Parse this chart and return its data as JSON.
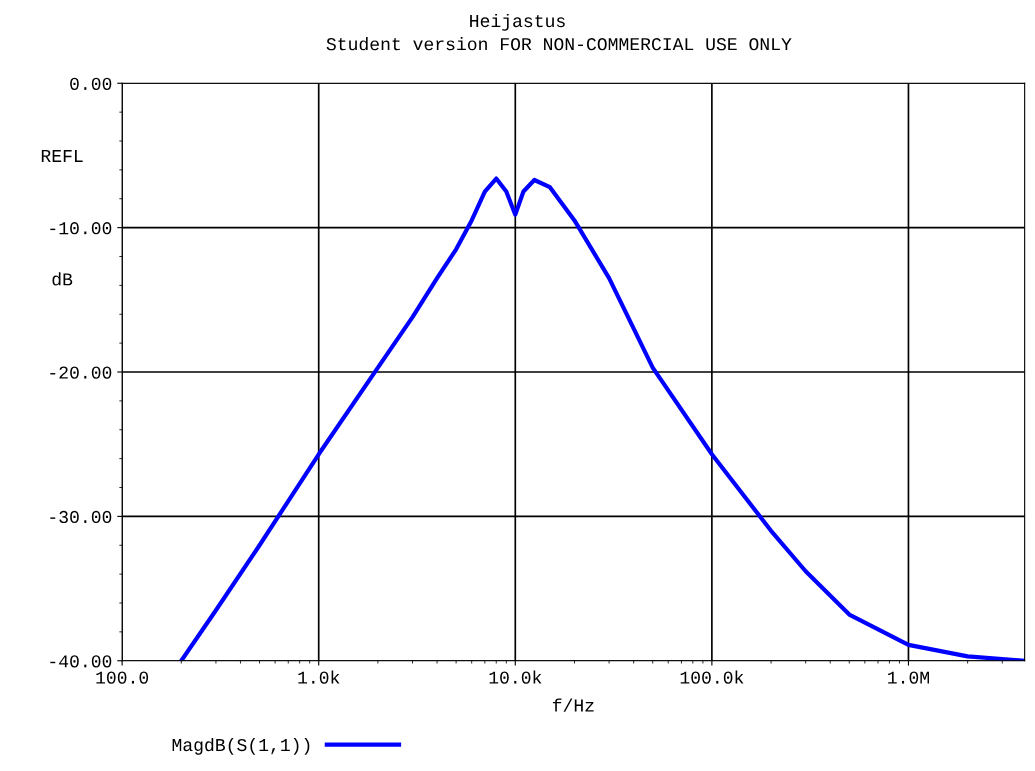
{
  "chart_data": {
    "type": "line",
    "title": "Heijastus",
    "subtitle": "Student version FOR NON-COMMERCIAL USE ONLY",
    "xlabel": "f/Hz",
    "ylabel": "REFL",
    "annotations": [
      "dB"
    ],
    "log": "x",
    "grid": true,
    "legend": "bottom",
    "marker": "none",
    "line_style": "solid",
    "xlim": [
      100,
      3900000
    ],
    "xticks": [
      {
        "value": 100,
        "label": "100.0"
      },
      {
        "value": 1000,
        "label": "1.0k"
      },
      {
        "value": 10000,
        "label": "10.0k"
      },
      {
        "value": 100000,
        "label": "100.0k"
      },
      {
        "value": 1000000,
        "label": "1.0M"
      }
    ],
    "ylim": [
      -40,
      0
    ],
    "yticks": [
      {
        "value": 0,
        "label": "0.00"
      },
      {
        "value": -10,
        "label": "-10.00"
      },
      {
        "value": -20,
        "label": "-20.00"
      },
      {
        "value": -30,
        "label": "-30.00"
      },
      {
        "value": -40,
        "label": "-40.00"
      }
    ],
    "x": [
      200,
      300,
      500,
      1000,
      2000,
      3000,
      4000,
      5000,
      6000,
      7000,
      8000,
      9000,
      10000,
      11000,
      12500,
      15000,
      20000,
      30000,
      50000,
      100000,
      200000,
      300000,
      500000,
      1000000,
      2000000,
      3900000
    ],
    "series": [
      {
        "name": "MagdB(S(1,1))",
        "color": "#0000ff",
        "values": [
          -40,
          -36.5,
          -32,
          -25.7,
          -19.7,
          -16.2,
          -13.5,
          -11.5,
          -9.5,
          -7.5,
          -6.6,
          -7.5,
          -9.1,
          -7.5,
          -6.7,
          -7.2,
          -9.5,
          -13.5,
          -19.7,
          -25.7,
          -31,
          -33.8,
          -36.8,
          -38.9,
          -39.7,
          -40
        ]
      }
    ]
  }
}
